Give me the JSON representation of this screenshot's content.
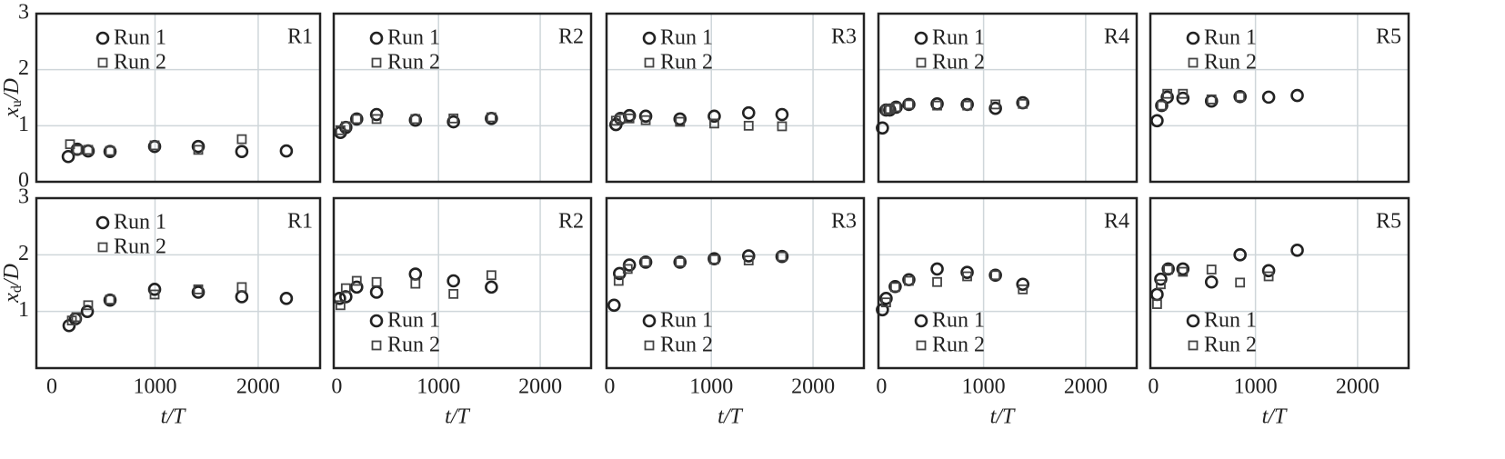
{
  "chart_data": [
    {
      "type": "scatter",
      "annotation": "R1",
      "ylabel": {
        "base": "x",
        "sub": "u",
        "rest": "/D"
      },
      "xlim": [
        -150,
        2600
      ],
      "xticks": [
        0,
        1000,
        2000
      ],
      "show_xticklabels": false,
      "ylim": [
        0,
        3
      ],
      "yticks": [
        0,
        1,
        2,
        3
      ],
      "show_yticklabels": true,
      "grid": true,
      "legend": "upper left",
      "series": [
        {
          "name": "Run 1",
          "marker": "circle",
          "color": "#222222",
          "x": [
            159,
            247,
            352,
            564,
            996,
            1419,
            1841,
            2273
          ],
          "values": [
            0.45,
            0.58,
            0.55,
            0.54,
            0.63,
            0.63,
            0.54,
            0.55
          ]
        },
        {
          "name": "Run 2",
          "marker": "square",
          "color": "#444444",
          "x": [
            176,
            247,
            352,
            564,
            996,
            1419,
            1841
          ],
          "values": [
            0.67,
            0.57,
            0.57,
            0.55,
            0.65,
            0.57,
            0.76
          ]
        }
      ]
    },
    {
      "type": "scatter",
      "annotation": "R2",
      "xlim": [
        -30,
        2500
      ],
      "xticks": [
        0,
        1000,
        2000
      ],
      "show_xticklabels": false,
      "ylim": [
        0,
        3
      ],
      "yticks": [
        0,
        1,
        2,
        3
      ],
      "show_yticklabels": false,
      "grid": true,
      "legend": "upper left",
      "series": [
        {
          "name": "Run 1",
          "marker": "circle",
          "color": "#222222",
          "x": [
            36,
            89,
            196,
            391,
            773,
            1147,
            1520
          ],
          "values": [
            0.88,
            0.97,
            1.12,
            1.2,
            1.1,
            1.07,
            1.13
          ]
        },
        {
          "name": "Run 2",
          "marker": "square",
          "color": "#444444",
          "x": [
            36,
            89,
            196,
            391,
            773,
            1147,
            1520
          ],
          "values": [
            0.92,
            0.99,
            1.12,
            1.12,
            1.12,
            1.13,
            1.15
          ]
        }
      ]
    },
    {
      "type": "scatter",
      "annotation": "R3",
      "xlim": [
        -30,
        2500
      ],
      "xticks": [
        0,
        1000,
        2000
      ],
      "show_xticklabels": false,
      "ylim": [
        0,
        3
      ],
      "yticks": [
        0,
        1,
        2,
        3
      ],
      "show_yticklabels": false,
      "grid": true,
      "legend": "upper left",
      "series": [
        {
          "name": "Run 1",
          "marker": "circle",
          "color": "#222222",
          "x": [
            62,
            107,
            195,
            355,
            692,
            1029,
            1367,
            1695
          ],
          "values": [
            1.02,
            1.13,
            1.18,
            1.17,
            1.12,
            1.17,
            1.23,
            1.2
          ]
        },
        {
          "name": "Run 2",
          "marker": "square",
          "color": "#444444",
          "x": [
            62,
            107,
            195,
            355,
            692,
            1029,
            1367,
            1695
          ],
          "values": [
            1.09,
            1.13,
            1.13,
            1.1,
            1.07,
            1.04,
            1.0,
            0.99
          ]
        }
      ]
    },
    {
      "type": "scatter",
      "annotation": "R4",
      "xlim": [
        -30,
        2500
      ],
      "xticks": [
        0,
        1000,
        2000
      ],
      "show_xticklabels": false,
      "ylim": [
        0,
        3
      ],
      "yticks": [
        0,
        1,
        2,
        3
      ],
      "show_yticklabels": false,
      "grid": true,
      "legend": "upper left",
      "series": [
        {
          "name": "Run 1",
          "marker": "circle",
          "color": "#222222",
          "x": [
            9,
            45,
            80,
            143,
            268,
            545,
            840,
            1116,
            1384
          ],
          "values": [
            0.96,
            1.28,
            1.28,
            1.33,
            1.38,
            1.39,
            1.38,
            1.31,
            1.41
          ]
        },
        {
          "name": "Run 2",
          "marker": "square",
          "color": "#444444",
          "x": [
            45,
            80,
            143,
            268,
            545,
            840,
            1116,
            1384
          ],
          "values": [
            1.28,
            1.3,
            1.33,
            1.38,
            1.36,
            1.36,
            1.38,
            1.39
          ]
        }
      ]
    },
    {
      "type": "scatter",
      "annotation": "R5",
      "xlim": [
        -30,
        2500
      ],
      "xticks": [
        0,
        1000,
        2000
      ],
      "show_xticklabels": false,
      "ylim": [
        0,
        3
      ],
      "yticks": [
        0,
        1,
        2,
        3
      ],
      "show_yticklabels": false,
      "grid": true,
      "legend": "upper left",
      "series": [
        {
          "name": "Run 1",
          "marker": "circle",
          "color": "#222222",
          "x": [
            36,
            81,
            136,
            289,
            569,
            849,
            1129,
            1409
          ],
          "values": [
            1.09,
            1.36,
            1.51,
            1.49,
            1.44,
            1.52,
            1.51,
            1.54
          ]
        },
        {
          "name": "Run 2",
          "marker": "square",
          "color": "#444444",
          "x": [
            81,
            136,
            289,
            569,
            849
          ],
          "values": [
            1.36,
            1.57,
            1.57,
            1.47,
            1.52
          ]
        }
      ]
    },
    {
      "type": "scatter",
      "annotation": "R1",
      "ylabel": {
        "base": "x",
        "sub": "d",
        "rest": "/D"
      },
      "xlabel": "t/T",
      "xlim": [
        -150,
        2600
      ],
      "xticks": [
        0,
        1000,
        2000
      ],
      "show_xticklabels": true,
      "ylim": [
        0,
        3
      ],
      "yticks": [
        1,
        2,
        3
      ],
      "show_yticklabels": true,
      "grid": true,
      "legend": "upper left",
      "series": [
        {
          "name": "Run 1",
          "marker": "circle",
          "color": "#222222",
          "x": [
            167,
            229,
            344,
            564,
            996,
            1419,
            1841,
            2273
          ],
          "values": [
            0.75,
            0.87,
            1.0,
            1.2,
            1.39,
            1.34,
            1.26,
            1.23
          ]
        },
        {
          "name": "Run 2",
          "marker": "square",
          "color": "#444444",
          "x": [
            194,
            238,
            352,
            564,
            996,
            1419,
            1841
          ],
          "values": [
            0.84,
            0.9,
            1.11,
            1.21,
            1.3,
            1.39,
            1.43
          ]
        }
      ]
    },
    {
      "type": "scatter",
      "annotation": "R2",
      "xlabel": "t/T",
      "xlim": [
        -30,
        2500
      ],
      "xticks": [
        0,
        1000,
        2000
      ],
      "show_xticklabels": true,
      "ylim": [
        0,
        3
      ],
      "yticks": [
        1,
        2,
        3
      ],
      "show_yticklabels": false,
      "grid": true,
      "legend": "lower left",
      "series": [
        {
          "name": "Run 1",
          "marker": "circle",
          "color": "#222222",
          "x": [
            27,
            89,
            196,
            391,
            773,
            1147,
            1520
          ],
          "values": [
            1.23,
            1.26,
            1.43,
            1.34,
            1.66,
            1.54,
            1.43
          ]
        },
        {
          "name": "Run 2",
          "marker": "square",
          "color": "#444444",
          "x": [
            36,
            89,
            196,
            391,
            773,
            1147,
            1520
          ],
          "values": [
            1.11,
            1.41,
            1.54,
            1.52,
            1.49,
            1.31,
            1.64
          ]
        }
      ]
    },
    {
      "type": "scatter",
      "annotation": "R3",
      "xlabel": "t/T",
      "xlim": [
        -30,
        2500
      ],
      "xticks": [
        0,
        1000,
        2000
      ],
      "show_xticklabels": true,
      "ylim": [
        0,
        3
      ],
      "yticks": [
        1,
        2,
        3
      ],
      "show_yticklabels": false,
      "grid": true,
      "legend": "lower left",
      "series": [
        {
          "name": "Run 1",
          "marker": "circle",
          "color": "#222222",
          "x": [
            44,
            98,
            195,
            355,
            692,
            1029,
            1367,
            1695
          ],
          "values": [
            1.11,
            1.67,
            1.82,
            1.87,
            1.87,
            1.93,
            1.98,
            1.97
          ]
        },
        {
          "name": "Run 2",
          "marker": "square",
          "color": "#444444",
          "x": [
            89,
            178,
            355,
            692,
            1029,
            1367,
            1695
          ],
          "values": [
            1.54,
            1.75,
            1.87,
            1.87,
            1.92,
            1.9,
            1.97
          ]
        }
      ]
    },
    {
      "type": "scatter",
      "annotation": "R4",
      "xlabel": "t/T",
      "xlim": [
        -30,
        2500
      ],
      "xticks": [
        0,
        1000,
        2000
      ],
      "show_xticklabels": true,
      "ylim": [
        0,
        3
      ],
      "yticks": [
        1,
        2,
        3
      ],
      "show_yticklabels": false,
      "grid": true,
      "legend": "lower left",
      "series": [
        {
          "name": "Run 1",
          "marker": "circle",
          "color": "#222222",
          "x": [
            9,
            45,
            134,
            268,
            545,
            839,
            1116,
            1384
          ],
          "values": [
            1.03,
            1.23,
            1.44,
            1.56,
            1.75,
            1.69,
            1.64,
            1.48
          ]
        },
        {
          "name": "Run 2",
          "marker": "square",
          "color": "#444444",
          "x": [
            45,
            134,
            268,
            545,
            839,
            1116,
            1384
          ],
          "values": [
            1.16,
            1.43,
            1.54,
            1.52,
            1.62,
            1.64,
            1.39
          ]
        }
      ]
    },
    {
      "type": "scatter",
      "annotation": "R5",
      "xlabel": "t/T",
      "xlim": [
        -30,
        2500
      ],
      "xticks": [
        0,
        1000,
        2000
      ],
      "show_xticklabels": true,
      "ylim": [
        0,
        3
      ],
      "yticks": [
        1,
        2,
        3
      ],
      "show_yticklabels": false,
      "grid": true,
      "legend": "lower left",
      "series": [
        {
          "name": "Run 1",
          "marker": "circle",
          "color": "#222222",
          "x": [
            36,
            72,
            145,
            289,
            569,
            849,
            1129,
            1409
          ],
          "values": [
            1.3,
            1.57,
            1.75,
            1.75,
            1.52,
            2.0,
            1.72,
            2.08
          ]
        },
        {
          "name": "Run 2",
          "marker": "square",
          "color": "#444444",
          "x": [
            36,
            72,
            145,
            289,
            569,
            849,
            1129
          ],
          "values": [
            1.13,
            1.48,
            1.74,
            1.7,
            1.74,
            1.51,
            1.62
          ]
        }
      ]
    }
  ]
}
